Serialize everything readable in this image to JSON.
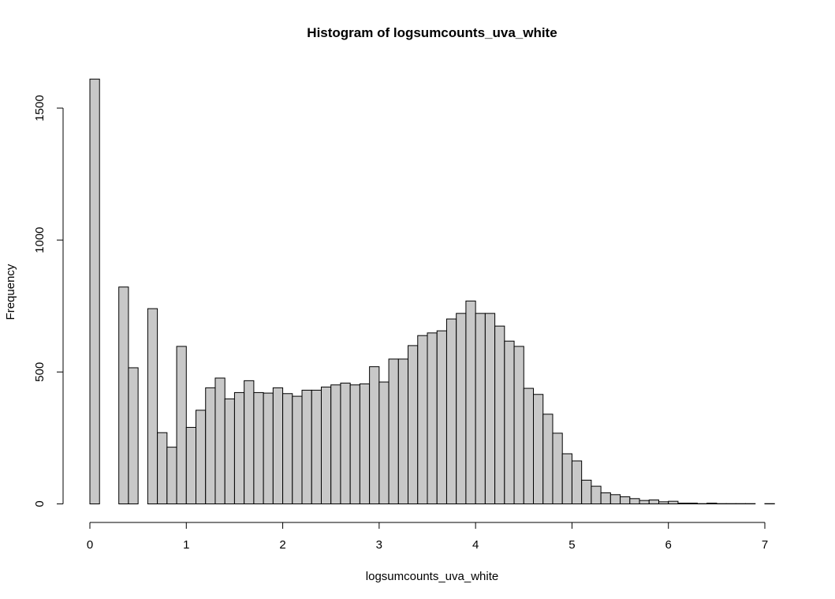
{
  "chart_data": {
    "type": "bar",
    "title": "Histogram of logsumcounts_uva_white",
    "xlabel": "logsumcounts_uva_white",
    "ylabel": "Frequency",
    "xlim": [
      0,
      7.1
    ],
    "ylim": [
      0,
      1610
    ],
    "x_ticks": [
      0,
      1,
      2,
      3,
      4,
      5,
      6,
      7
    ],
    "y_ticks": [
      0,
      500,
      1000,
      1500
    ],
    "x_tick_labels": [
      "0",
      "1",
      "2",
      "3",
      "4",
      "5",
      "6",
      "7"
    ],
    "y_tick_labels": [
      "0",
      "500",
      "1000",
      "1500"
    ],
    "bin_width": 0.1,
    "bin_start": 0,
    "bar_fill": "#c8c8c8",
    "bar_stroke": "#000000",
    "grid": false,
    "values": [
      1610,
      0,
      0,
      822,
      516,
      0,
      740,
      270,
      215,
      597,
      290,
      355,
      440,
      477,
      398,
      422,
      467,
      422,
      420,
      440,
      418,
      408,
      431,
      431,
      443,
      451,
      458,
      451,
      455,
      520,
      462,
      549,
      549,
      600,
      638,
      648,
      656,
      701,
      722,
      769,
      722,
      722,
      674,
      617,
      597,
      438,
      415,
      340,
      268,
      190,
      163,
      90,
      67,
      42,
      35,
      27,
      20,
      13,
      15,
      8,
      10,
      3,
      3,
      1,
      3,
      1,
      1,
      1,
      1,
      0,
      1
    ]
  }
}
